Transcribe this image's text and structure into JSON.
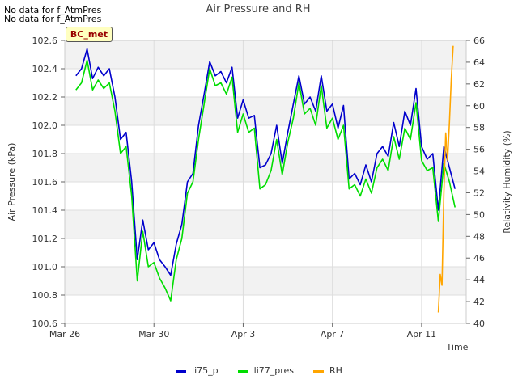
{
  "notes": [
    "No data for f_AtmPres",
    "No data for f_AtmPres"
  ],
  "badge": "BC_met",
  "chart_data": {
    "type": "line",
    "title": "Air Pressure and RH",
    "xlabel": "Time",
    "ylabel": "Air Pressure (kPa)",
    "y2label": "Relativity Humidity (%)",
    "xlim": [
      "2023-03-26",
      "2023-04-13"
    ],
    "ylim": [
      100.6,
      102.6
    ],
    "y2lim": [
      40,
      66
    ],
    "xticks": [
      {
        "date": "2023-03-26",
        "label": "Mar 26"
      },
      {
        "date": "2023-03-30",
        "label": "Mar 30"
      },
      {
        "date": "2023-04-03",
        "label": "Apr 3"
      },
      {
        "date": "2023-04-07",
        "label": "Apr 7"
      },
      {
        "date": "2023-04-11",
        "label": "Apr 11"
      }
    ],
    "yticks": [
      "100.6",
      "100.8",
      "101.0",
      "101.2",
      "101.4",
      "101.6",
      "101.8",
      "102.0",
      "102.2",
      "102.4",
      "102.6"
    ],
    "y2ticks": [
      "40",
      "42",
      "44",
      "46",
      "48",
      "50",
      "52",
      "54",
      "56",
      "58",
      "60",
      "62",
      "64",
      "66"
    ],
    "legend_position": "bottom-center",
    "grid": true,
    "series": [
      {
        "name": "li75_p",
        "color": "#0000cc",
        "axis": "left",
        "x": [
          "2023-03-26 12:00",
          "2023-03-26 18:00",
          "2023-03-27 00:00",
          "2023-03-27 06:00",
          "2023-03-27 12:00",
          "2023-03-27 18:00",
          "2023-03-28 00:00",
          "2023-03-28 06:00",
          "2023-03-28 12:00",
          "2023-03-28 18:00",
          "2023-03-29 00:00",
          "2023-03-29 06:00",
          "2023-03-29 12:00",
          "2023-03-29 18:00",
          "2023-03-30 00:00",
          "2023-03-30 06:00",
          "2023-03-30 12:00",
          "2023-03-30 18:00",
          "2023-03-31 00:00",
          "2023-03-31 06:00",
          "2023-03-31 12:00",
          "2023-03-31 18:00",
          "2023-04-01 00:00",
          "2023-04-01 06:00",
          "2023-04-01 12:00",
          "2023-04-01 18:00",
          "2023-04-02 00:00",
          "2023-04-02 06:00",
          "2023-04-02 12:00",
          "2023-04-02 18:00",
          "2023-04-03 00:00",
          "2023-04-03 06:00",
          "2023-04-03 12:00",
          "2023-04-03 18:00",
          "2023-04-04 00:00",
          "2023-04-04 06:00",
          "2023-04-04 12:00",
          "2023-04-04 18:00",
          "2023-04-05 00:00",
          "2023-04-05 06:00",
          "2023-04-05 12:00",
          "2023-04-05 18:00",
          "2023-04-06 00:00",
          "2023-04-06 06:00",
          "2023-04-06 12:00",
          "2023-04-06 18:00",
          "2023-04-07 00:00",
          "2023-04-07 06:00",
          "2023-04-07 12:00",
          "2023-04-07 18:00",
          "2023-04-08 00:00",
          "2023-04-08 06:00",
          "2023-04-08 12:00",
          "2023-04-08 18:00",
          "2023-04-09 00:00",
          "2023-04-09 06:00",
          "2023-04-09 12:00",
          "2023-04-09 18:00",
          "2023-04-10 00:00",
          "2023-04-10 06:00",
          "2023-04-10 12:00",
          "2023-04-10 18:00",
          "2023-04-11 00:00",
          "2023-04-11 06:00",
          "2023-04-11 12:00",
          "2023-04-11 18:00",
          "2023-04-12 00:00",
          "2023-04-12 06:00",
          "2023-04-12 12:00"
        ],
        "y": [
          102.35,
          102.4,
          102.54,
          102.33,
          102.41,
          102.35,
          102.4,
          102.2,
          101.9,
          101.95,
          101.6,
          101.05,
          101.33,
          101.12,
          101.17,
          101.05,
          101.0,
          100.94,
          101.16,
          101.3,
          101.6,
          101.66,
          102.0,
          102.22,
          102.45,
          102.35,
          102.38,
          102.3,
          102.41,
          102.05,
          102.18,
          102.05,
          102.07,
          101.7,
          101.72,
          101.8,
          102.0,
          101.73,
          101.95,
          102.15,
          102.35,
          102.15,
          102.2,
          102.1,
          102.35,
          102.1,
          102.15,
          101.98,
          102.14,
          101.62,
          101.66,
          101.58,
          101.72,
          101.6,
          101.8,
          101.85,
          101.78,
          102.02,
          101.85,
          102.1,
          102.0,
          102.26,
          101.85,
          101.76,
          101.8,
          101.4,
          101.85,
          101.7,
          101.55
        ]
      },
      {
        "name": "li77_pres",
        "color": "#00dd00",
        "axis": "left",
        "x": [
          "2023-03-26 12:00",
          "2023-03-26 18:00",
          "2023-03-27 00:00",
          "2023-03-27 06:00",
          "2023-03-27 12:00",
          "2023-03-27 18:00",
          "2023-03-28 00:00",
          "2023-03-28 06:00",
          "2023-03-28 12:00",
          "2023-03-28 18:00",
          "2023-03-29 00:00",
          "2023-03-29 06:00",
          "2023-03-29 12:00",
          "2023-03-29 18:00",
          "2023-03-30 00:00",
          "2023-03-30 06:00",
          "2023-03-30 12:00",
          "2023-03-30 18:00",
          "2023-03-31 00:00",
          "2023-03-31 06:00",
          "2023-03-31 12:00",
          "2023-03-31 18:00",
          "2023-04-01 00:00",
          "2023-04-01 06:00",
          "2023-04-01 12:00",
          "2023-04-01 18:00",
          "2023-04-02 00:00",
          "2023-04-02 06:00",
          "2023-04-02 12:00",
          "2023-04-02 18:00",
          "2023-04-03 00:00",
          "2023-04-03 06:00",
          "2023-04-03 12:00",
          "2023-04-03 18:00",
          "2023-04-04 00:00",
          "2023-04-04 06:00",
          "2023-04-04 12:00",
          "2023-04-04 18:00",
          "2023-04-05 00:00",
          "2023-04-05 06:00",
          "2023-04-05 12:00",
          "2023-04-05 18:00",
          "2023-04-06 00:00",
          "2023-04-06 06:00",
          "2023-04-06 12:00",
          "2023-04-06 18:00",
          "2023-04-07 00:00",
          "2023-04-07 06:00",
          "2023-04-07 12:00",
          "2023-04-07 18:00",
          "2023-04-08 00:00",
          "2023-04-08 06:00",
          "2023-04-08 12:00",
          "2023-04-08 18:00",
          "2023-04-09 00:00",
          "2023-04-09 06:00",
          "2023-04-09 12:00",
          "2023-04-09 18:00",
          "2023-04-10 00:00",
          "2023-04-10 06:00",
          "2023-04-10 12:00",
          "2023-04-10 18:00",
          "2023-04-11 00:00",
          "2023-04-11 06:00",
          "2023-04-11 12:00",
          "2023-04-11 18:00",
          "2023-04-12 00:00",
          "2023-04-12 06:00",
          "2023-04-12 12:00"
        ],
        "y": [
          102.25,
          102.3,
          102.46,
          102.25,
          102.32,
          102.26,
          102.3,
          102.1,
          101.8,
          101.85,
          101.5,
          100.9,
          101.25,
          101.0,
          101.03,
          100.92,
          100.85,
          100.76,
          101.05,
          101.2,
          101.52,
          101.6,
          101.9,
          102.15,
          102.4,
          102.28,
          102.3,
          102.22,
          102.34,
          101.95,
          102.08,
          101.95,
          101.98,
          101.55,
          101.58,
          101.68,
          101.9,
          101.65,
          101.88,
          102.05,
          102.3,
          102.08,
          102.12,
          102.0,
          102.28,
          101.98,
          102.05,
          101.9,
          102.0,
          101.55,
          101.58,
          101.5,
          101.62,
          101.52,
          101.7,
          101.76,
          101.68,
          101.92,
          101.76,
          101.98,
          101.9,
          102.16,
          101.75,
          101.68,
          101.7,
          101.32,
          101.73,
          101.6,
          101.42
        ]
      },
      {
        "name": "RH",
        "color": "#ffa500",
        "axis": "right",
        "x": [
          "2023-04-11 18:00",
          "2023-04-11 20:00",
          "2023-04-11 22:00",
          "2023-04-12 00:00",
          "2023-04-12 02:00",
          "2023-04-12 04:00",
          "2023-04-12 06:00",
          "2023-04-12 08:00",
          "2023-04-12 10:00"
        ],
        "y": [
          41.0,
          44.5,
          43.5,
          52.0,
          57.5,
          55.0,
          58.5,
          62.5,
          65.5
        ]
      }
    ]
  }
}
